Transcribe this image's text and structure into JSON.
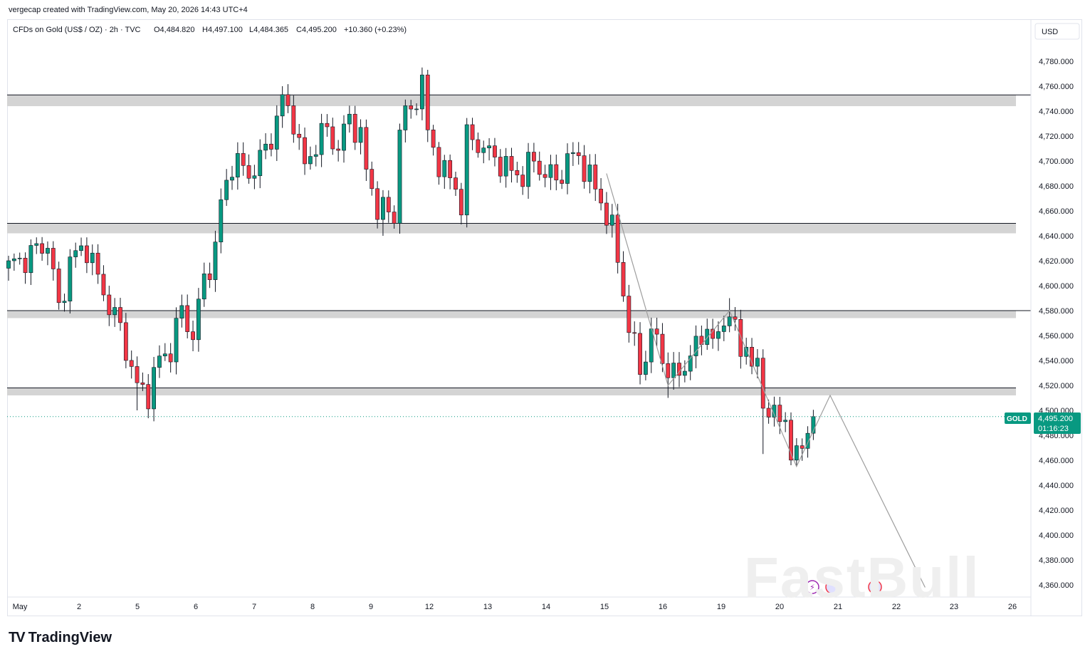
{
  "header": {
    "credit": "vergecap created with TradingView.com, May 20, 2026 14:43 UTC+4",
    "symbol": "CFDs on Gold (US$ / OZ) · 2h · TVC",
    "open": "O4,484.820",
    "high": "H4,497.100",
    "low": "L4,484.365",
    "close": "C4,495.200",
    "change": "+10.360 (+0.23%)"
  },
  "price_axis": {
    "currency": "USD"
  },
  "last_price": {
    "symbol": "GOLD",
    "price": "4,495.200",
    "countdown": "01:16:23"
  },
  "brand": {
    "logo_text": "TradingView",
    "watermark": "FastBull"
  },
  "colors": {
    "up": "#089981",
    "down": "#f23645",
    "zone": "#d4d4d4",
    "accent": "#089981"
  },
  "chart_data": {
    "type": "candlestick",
    "interval": "2h",
    "currency": "USD",
    "ylim": [
      4350,
      4800
    ],
    "y_ticks": [
      4360,
      4380,
      4400,
      4420,
      4440,
      4460,
      4480,
      4500,
      4520,
      4540,
      4560,
      4580,
      4600,
      4620,
      4640,
      4660,
      4680,
      4700,
      4720,
      4740,
      4760,
      4780
    ],
    "x_ticks": [
      "May",
      "2",
      "5",
      "6",
      "7",
      "8",
      "9",
      "12",
      "13",
      "14",
      "15",
      "16",
      "19",
      "20",
      "21",
      "22",
      "23",
      "26"
    ],
    "resistance_zones": [
      [
        4744,
        4753
      ],
      [
        4642,
        4650
      ],
      [
        4574,
        4580
      ],
      [
        4512,
        4518
      ]
    ],
    "anchor_closes": [
      [
        0,
        4615
      ],
      [
        4,
        4625
      ],
      [
        7,
        4635
      ],
      [
        9,
        4580
      ],
      [
        11,
        4620
      ],
      [
        14,
        4632
      ],
      [
        16,
        4605
      ],
      [
        18,
        4585
      ],
      [
        20,
        4565
      ],
      [
        22,
        4535
      ],
      [
        23,
        4517
      ],
      [
        25,
        4515
      ],
      [
        27,
        4540
      ],
      [
        29,
        4550
      ],
      [
        31,
        4580
      ],
      [
        33,
        4560
      ],
      [
        35,
        4605
      ],
      [
        37,
        4630
      ],
      [
        38,
        4665
      ],
      [
        40,
        4700
      ],
      [
        43,
        4690
      ],
      [
        45,
        4700
      ],
      [
        47,
        4720
      ],
      [
        49,
        4748
      ],
      [
        51,
        4735
      ],
      [
        52,
        4710
      ],
      [
        53,
        4695
      ],
      [
        55,
        4715
      ],
      [
        57,
        4725
      ],
      [
        59,
        4710
      ],
      [
        61,
        4735
      ],
      [
        63,
        4720
      ],
      [
        64,
        4690
      ],
      [
        66,
        4665
      ],
      [
        67,
        4660
      ],
      [
        69,
        4655
      ],
      [
        70,
        4730
      ],
      [
        72,
        4740
      ],
      [
        74,
        4765
      ],
      [
        75,
        4720
      ],
      [
        77,
        4700
      ],
      [
        78,
        4690
      ],
      [
        80,
        4680
      ],
      [
        81,
        4665
      ],
      [
        82,
        4718
      ],
      [
        84,
        4715
      ],
      [
        86,
        4705
      ],
      [
        88,
        4700
      ],
      [
        90,
        4690
      ],
      [
        92,
        4690
      ],
      [
        94,
        4700
      ],
      [
        96,
        4690
      ],
      [
        98,
        4685
      ],
      [
        100,
        4700
      ],
      [
        102,
        4705
      ],
      [
        104,
        4685
      ],
      [
        106,
        4670
      ],
      [
        107,
        4655
      ],
      [
        108,
        4645
      ],
      [
        109,
        4620
      ],
      [
        110,
        4600
      ],
      [
        111,
        4560
      ],
      [
        112,
        4555
      ],
      [
        113,
        4530
      ],
      [
        114,
        4550
      ],
      [
        116,
        4560
      ],
      [
        117,
        4540
      ],
      [
        118,
        4535
      ],
      [
        119,
        4525
      ],
      [
        120,
        4530
      ],
      [
        122,
        4545
      ],
      [
        124,
        4555
      ],
      [
        125,
        4575
      ],
      [
        126,
        4550
      ],
      [
        128,
        4570
      ],
      [
        129,
        4585
      ],
      [
        130,
        4560
      ],
      [
        131,
        4545
      ],
      [
        132,
        4555
      ],
      [
        133,
        4540
      ],
      [
        134,
        4530
      ],
      [
        135,
        4505
      ],
      [
        137,
        4500
      ],
      [
        138,
        4485
      ],
      [
        139,
        4495
      ],
      [
        140,
        4470
      ],
      [
        141,
        4460
      ],
      [
        142,
        4470
      ],
      [
        143,
        4485
      ],
      [
        144,
        4495
      ]
    ],
    "highlighted_highs": [
      [
        49,
        4760
      ],
      [
        74,
        4775
      ],
      [
        129,
        4590
      ]
    ],
    "highlighted_lows": [
      [
        23,
        4500
      ],
      [
        67,
        4640
      ],
      [
        118,
        4510
      ],
      [
        135,
        4465
      ],
      [
        141,
        4455
      ]
    ],
    "projection_path": [
      [
        107,
        4690
      ],
      [
        118,
        4520
      ],
      [
        129,
        4580
      ],
      [
        141,
        4455
      ],
      [
        147,
        4512
      ],
      [
        164,
        4358
      ]
    ]
  }
}
